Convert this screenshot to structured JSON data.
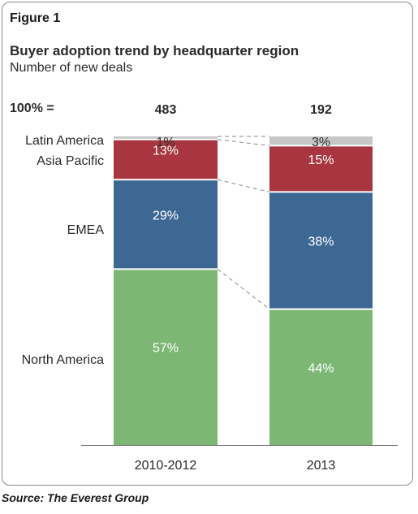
{
  "figure_label": "Figure 1",
  "source": "Source: The Everest Group",
  "colors": {
    "North America": "#7cb874",
    "EMEA": "#3d6894",
    "Asia Pacific": "#a8353f",
    "Latin America": "#c6c6c6"
  },
  "chart_data": {
    "type": "bar",
    "stacked": true,
    "normalized": true,
    "title": "Buyer adoption trend by headquarter region",
    "subtitle": "Number of new deals",
    "totals_label": "100% =",
    "categories": [
      "2010-2012",
      "2013"
    ],
    "totals": [
      483,
      192
    ],
    "series": [
      {
        "name": "North America",
        "values": [
          57,
          44
        ]
      },
      {
        "name": "EMEA",
        "values": [
          29,
          38
        ]
      },
      {
        "name": "Asia Pacific",
        "values": [
          13,
          15
        ]
      },
      {
        "name": "Latin America",
        "values": [
          1,
          3
        ]
      }
    ],
    "data_labels": [
      [
        "57%",
        "44%"
      ],
      [
        "29%",
        "38%"
      ],
      [
        "13%",
        "15%"
      ],
      [
        "1%",
        "3%"
      ]
    ],
    "ylim": [
      0,
      100
    ],
    "legend": "left"
  }
}
